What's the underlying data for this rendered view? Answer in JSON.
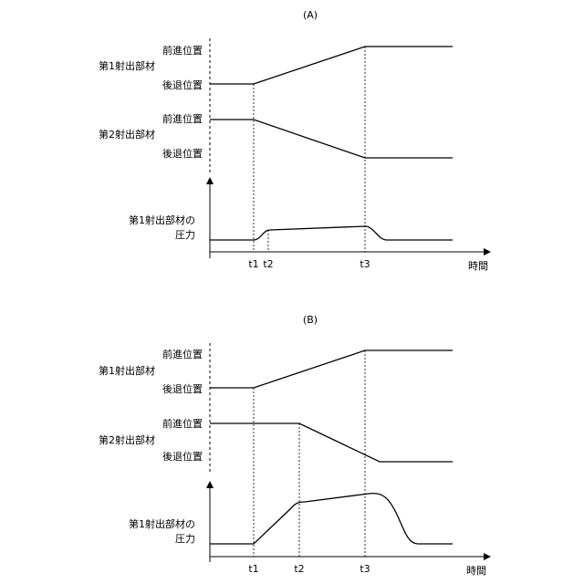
{
  "panels": {
    "a": {
      "title": "(A)",
      "member1_label": "第1射出部材",
      "member2_label": "第2射出部材",
      "m1_forward": "前進位置",
      "m1_retract": "後退位置",
      "m2_forward": "前進位置",
      "m2_retract": "後退位置",
      "pressure_label_1": "第1射出部材の",
      "pressure_label_2": "圧力",
      "t1": "t1",
      "t2": "t2",
      "t3": "t3",
      "time_label": "時間"
    },
    "b": {
      "title": "(B)",
      "member1_label": "第1射出部材",
      "member2_label": "第2射出部材",
      "m1_forward": "前進位置",
      "m1_retract": "後退位置",
      "m2_forward": "前進位置",
      "m2_retract": "後退位置",
      "pressure_label_1": "第1射出部材の",
      "pressure_label_2": "圧力",
      "t1": "t1",
      "t2": "t2",
      "t3": "t3",
      "time_label": "時間"
    }
  }
}
